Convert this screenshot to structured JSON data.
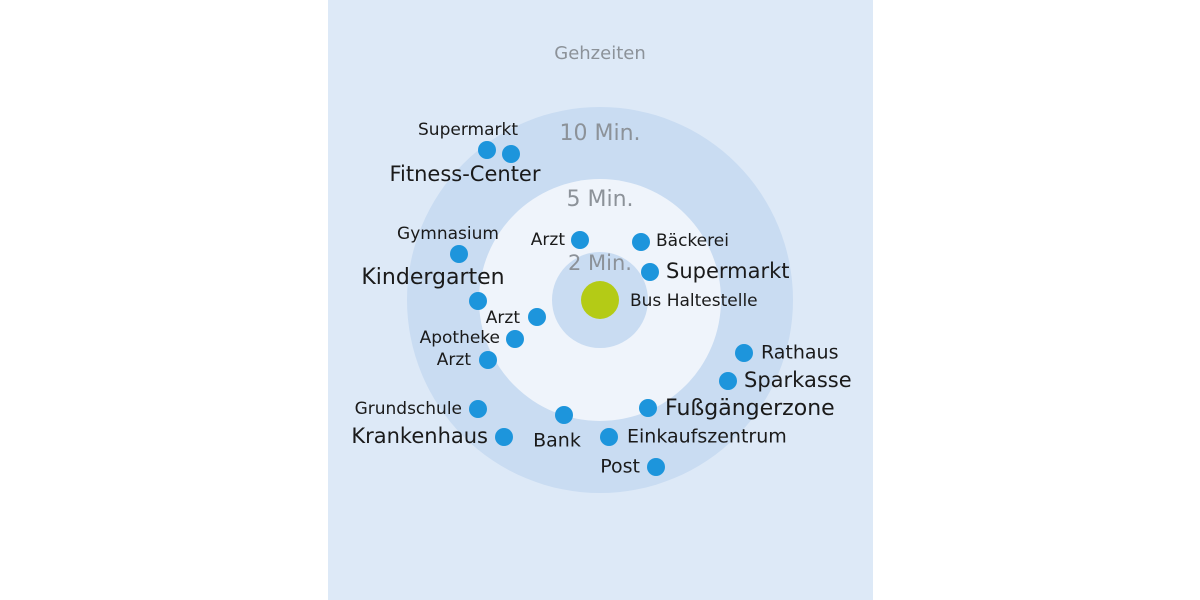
{
  "title": "Gehzeiten",
  "rings": [
    {
      "label": "10 Min."
    },
    {
      "label": "5 Min."
    },
    {
      "label": "2 Min."
    }
  ],
  "center": {
    "label": "Bus Haltestelle"
  },
  "nodes": [
    {
      "label": "Supermarkt"
    },
    {
      "label": "Fitness-Center"
    },
    {
      "label": "Gymnasium"
    },
    {
      "label": "Kindergarten"
    },
    {
      "label": "Arzt"
    },
    {
      "label": "Apotheke"
    },
    {
      "label": "Arzt"
    },
    {
      "label": "Grundschule"
    },
    {
      "label": "Krankenhaus"
    },
    {
      "label": "Bank"
    },
    {
      "label": "Einkaufszentrum"
    },
    {
      "label": "Post"
    },
    {
      "label": "Fußgängerzone"
    },
    {
      "label": "Sparkasse"
    },
    {
      "label": "Rathaus"
    },
    {
      "label": "Arzt"
    },
    {
      "label": "Bäckerei"
    },
    {
      "label": "Supermarkt"
    }
  ]
}
